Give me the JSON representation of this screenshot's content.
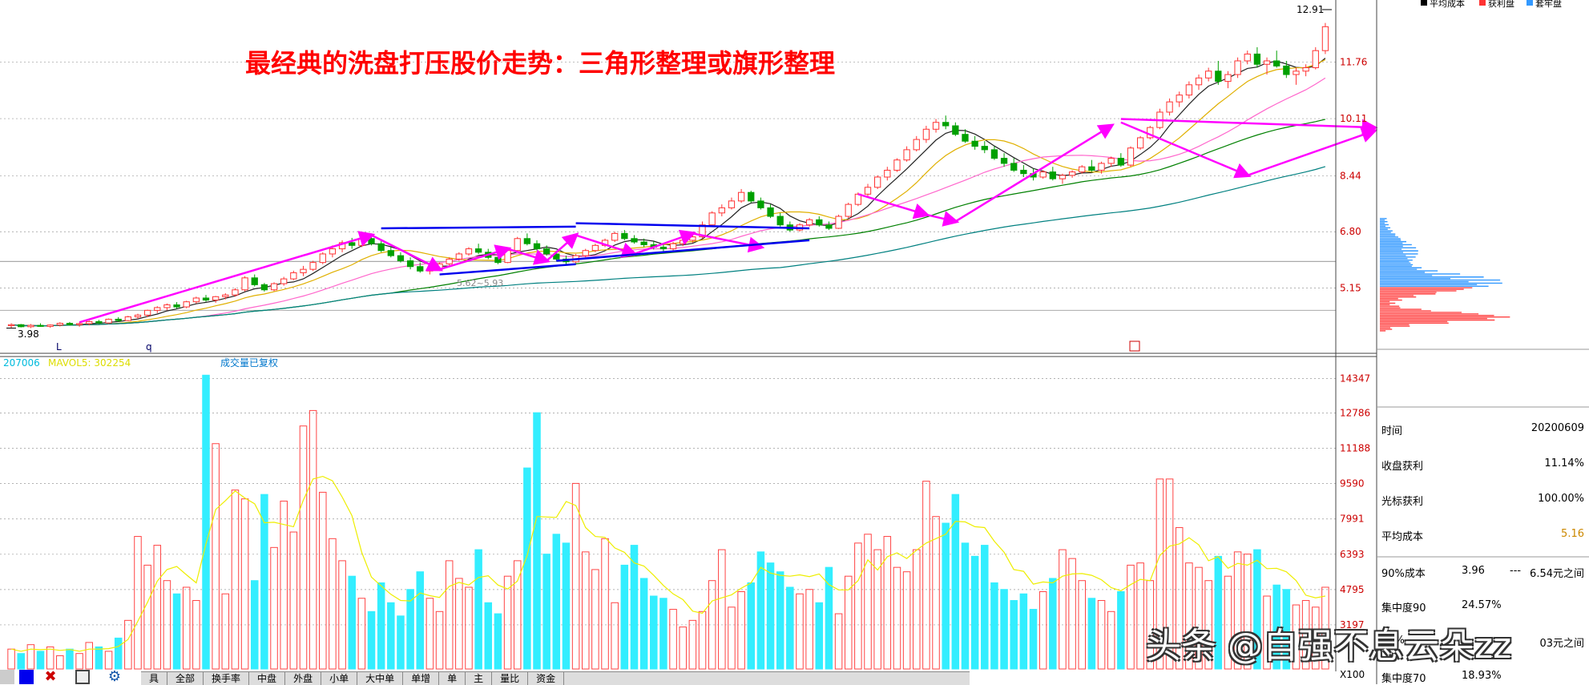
{
  "headline": "最经典的洗盘打压股价走势：三角形整理或旗形整理",
  "price_axis_labels": [
    "12.91",
    "11.76",
    "10.11",
    "8.44",
    "6.80",
    "5.15"
  ],
  "volume_axis_labels": [
    "14347",
    "12786",
    "11188",
    "9590",
    "7991",
    "6393",
    "4795",
    "3197"
  ],
  "volume_unit": "X100",
  "low_marker": "3.98",
  "support_label": "5.62~5.93",
  "time_markers": [
    "L",
    "q"
  ],
  "volume_header": {
    "vol": "207006",
    "mavol": "MAVOL5: 302254",
    "note": "成交量已复权"
  },
  "legend": [
    "平均成本",
    "获利盘",
    "套牢盘"
  ],
  "colors": {
    "up": "#ff3333",
    "down": "#00a000",
    "ma_white": "#222222",
    "ma_yellow": "#e0b000",
    "ma_pink": "#ff66cc",
    "ma_green": "#008000",
    "ma_teal": "#008080",
    "volume_up": "#ff4444",
    "volume_down": "#33eeff",
    "arrow": "#ff00ff",
    "trend": "#0000ee"
  },
  "side_panel": {
    "time_label": "时间",
    "time_value": "20200609",
    "close_profit_label": "收盘获利",
    "close_profit_value": "11.14%",
    "cursor_profit_label": "光标获利",
    "cursor_profit_value": "100.00%",
    "avg_cost_label": "平均成本",
    "avg_cost_value": "5.16",
    "cost90_label": "90%成本",
    "cost90_low": "3.96",
    "cost90_sep": "---",
    "cost90_high": "6.54元之间",
    "conc90_label": "集中度90",
    "conc90_value": "24.57%",
    "cost70_label": "70%",
    "cost70_tail": "03元之间",
    "conc70_label": "集中度70",
    "conc70_value": "18.93%"
  },
  "tabs": [
    "具",
    "全部",
    "换手率",
    "中盘",
    "外盘",
    "小单",
    "大中单",
    "单增",
    "单",
    "主",
    "量比",
    "资金"
  ],
  "watermark": "头条 @自强不息云朵zz",
  "chart_data": [
    {
      "type": "candlestick",
      "title": "",
      "y_axis_ticks": [
        12.91,
        11.76,
        10.11,
        8.44,
        6.8,
        5.15
      ],
      "ylim": [
        3.5,
        13.3
      ],
      "low_annotation": 3.98,
      "high_annotation": 12.91,
      "ohlc": [
        [
          4.05,
          4.12,
          3.98,
          4.08
        ],
        [
          4.08,
          4.1,
          4.0,
          4.02
        ],
        [
          4.02,
          4.1,
          3.98,
          4.06
        ],
        [
          4.06,
          4.12,
          4.02,
          4.03
        ],
        [
          4.03,
          4.09,
          3.99,
          4.07
        ],
        [
          4.07,
          4.15,
          4.03,
          4.12
        ],
        [
          4.12,
          4.16,
          4.05,
          4.08
        ],
        [
          4.08,
          4.14,
          4.02,
          4.11
        ],
        [
          4.11,
          4.2,
          4.06,
          4.17
        ],
        [
          4.17,
          4.22,
          4.1,
          4.13
        ],
        [
          4.13,
          4.26,
          4.1,
          4.24
        ],
        [
          4.24,
          4.3,
          4.16,
          4.2
        ],
        [
          4.2,
          4.34,
          4.18,
          4.31
        ],
        [
          4.31,
          4.4,
          4.25,
          4.36
        ],
        [
          4.36,
          4.52,
          4.3,
          4.5
        ],
        [
          4.5,
          4.62,
          4.42,
          4.58
        ],
        [
          4.58,
          4.7,
          4.5,
          4.66
        ],
        [
          4.66,
          4.74,
          4.55,
          4.6
        ],
        [
          4.6,
          4.78,
          4.56,
          4.75
        ],
        [
          4.75,
          4.9,
          4.7,
          4.86
        ],
        [
          4.86,
          4.95,
          4.75,
          4.8
        ],
        [
          4.8,
          4.92,
          4.72,
          4.9
        ],
        [
          4.9,
          5.0,
          4.82,
          4.95
        ],
        [
          4.95,
          5.15,
          4.9,
          5.1
        ],
        [
          5.1,
          5.5,
          5.05,
          5.45
        ],
        [
          5.45,
          5.55,
          5.2,
          5.25
        ],
        [
          5.25,
          5.3,
          5.05,
          5.1
        ],
        [
          5.1,
          5.32,
          5.06,
          5.28
        ],
        [
          5.28,
          5.48,
          5.22,
          5.42
        ],
        [
          5.42,
          5.66,
          5.38,
          5.6
        ],
        [
          5.6,
          5.8,
          5.5,
          5.7
        ],
        [
          5.7,
          5.95,
          5.65,
          5.9
        ],
        [
          5.9,
          6.2,
          5.85,
          6.15
        ],
        [
          6.15,
          6.4,
          6.05,
          6.3
        ],
        [
          6.3,
          6.55,
          6.2,
          6.48
        ],
        [
          6.48,
          6.62,
          6.3,
          6.4
        ],
        [
          6.4,
          6.66,
          6.35,
          6.6
        ],
        [
          6.6,
          6.75,
          6.4,
          6.45
        ],
        [
          6.45,
          6.55,
          6.2,
          6.25
        ],
        [
          6.25,
          6.35,
          6.05,
          6.1
        ],
        [
          6.1,
          6.2,
          5.9,
          5.95
        ],
        [
          5.95,
          6.05,
          5.7,
          5.78
        ],
        [
          5.78,
          5.9,
          5.6,
          5.65
        ],
        [
          5.65,
          5.75,
          5.55,
          5.7
        ],
        [
          5.7,
          5.9,
          5.65,
          5.86
        ],
        [
          5.86,
          6.05,
          5.8,
          6.0
        ],
        [
          6.0,
          6.2,
          5.95,
          6.15
        ],
        [
          6.15,
          6.35,
          6.1,
          6.3
        ],
        [
          6.3,
          6.45,
          6.15,
          6.2
        ],
        [
          6.2,
          6.3,
          6.0,
          6.05
        ],
        [
          6.05,
          6.15,
          5.85,
          5.9
        ],
        [
          5.9,
          6.3,
          5.88,
          6.25
        ],
        [
          6.25,
          6.65,
          6.2,
          6.6
        ],
        [
          6.6,
          6.75,
          6.4,
          6.45
        ],
        [
          6.45,
          6.55,
          6.25,
          6.3
        ],
        [
          6.3,
          6.4,
          6.1,
          6.15
        ],
        [
          6.15,
          6.25,
          5.95,
          6.0
        ],
        [
          6.0,
          6.1,
          5.85,
          5.92
        ],
        [
          5.92,
          6.15,
          5.88,
          6.1
        ],
        [
          6.1,
          6.3,
          6.05,
          6.25
        ],
        [
          6.25,
          6.45,
          6.2,
          6.4
        ],
        [
          6.4,
          6.6,
          6.35,
          6.55
        ],
        [
          6.55,
          6.8,
          6.5,
          6.75
        ],
        [
          6.75,
          6.85,
          6.55,
          6.6
        ],
        [
          6.6,
          6.7,
          6.45,
          6.5
        ],
        [
          6.5,
          6.6,
          6.35,
          6.42
        ],
        [
          6.42,
          6.52,
          6.28,
          6.35
        ],
        [
          6.35,
          6.45,
          6.2,
          6.3
        ],
        [
          6.3,
          6.5,
          6.25,
          6.45
        ],
        [
          6.45,
          6.6,
          6.38,
          6.55
        ],
        [
          6.55,
          6.7,
          6.48,
          6.65
        ],
        [
          6.65,
          7.1,
          6.6,
          7.0
        ],
        [
          7.0,
          7.4,
          6.95,
          7.35
        ],
        [
          7.35,
          7.6,
          7.25,
          7.5
        ],
        [
          7.5,
          7.8,
          7.45,
          7.7
        ],
        [
          7.7,
          8.05,
          7.65,
          7.95
        ],
        [
          7.95,
          8.0,
          7.65,
          7.7
        ],
        [
          7.7,
          7.8,
          7.45,
          7.5
        ],
        [
          7.5,
          7.6,
          7.2,
          7.25
        ],
        [
          7.25,
          7.35,
          6.95,
          7.0
        ],
        [
          7.0,
          7.1,
          6.8,
          6.85
        ],
        [
          6.85,
          7.05,
          6.8,
          7.0
        ],
        [
          7.0,
          7.2,
          6.95,
          7.15
        ],
        [
          7.15,
          7.25,
          6.95,
          7.0
        ],
        [
          7.0,
          7.1,
          6.85,
          6.9
        ],
        [
          6.9,
          7.3,
          6.88,
          7.25
        ],
        [
          7.25,
          7.65,
          7.2,
          7.6
        ],
        [
          7.6,
          7.95,
          7.55,
          7.9
        ],
        [
          7.9,
          8.2,
          7.8,
          8.1
        ],
        [
          8.1,
          8.45,
          8.05,
          8.4
        ],
        [
          8.4,
          8.7,
          8.3,
          8.6
        ],
        [
          8.6,
          8.95,
          8.55,
          8.9
        ],
        [
          8.9,
          9.3,
          8.85,
          9.2
        ],
        [
          9.2,
          9.6,
          9.15,
          9.5
        ],
        [
          9.5,
          9.9,
          9.4,
          9.8
        ],
        [
          9.8,
          10.1,
          9.7,
          10.0
        ],
        [
          10.0,
          10.2,
          9.8,
          9.9
        ],
        [
          9.9,
          10.0,
          9.6,
          9.65
        ],
        [
          9.65,
          9.8,
          9.4,
          9.45
        ],
        [
          9.45,
          9.6,
          9.2,
          9.3
        ],
        [
          9.3,
          9.45,
          9.1,
          9.2
        ],
        [
          9.2,
          9.3,
          8.9,
          8.95
        ],
        [
          8.95,
          9.1,
          8.7,
          8.8
        ],
        [
          8.8,
          8.95,
          8.55,
          8.6
        ],
        [
          8.6,
          8.75,
          8.4,
          8.5
        ],
        [
          8.5,
          8.65,
          8.3,
          8.4
        ],
        [
          8.4,
          8.6,
          8.35,
          8.55
        ],
        [
          8.55,
          8.7,
          8.3,
          8.35
        ],
        [
          8.35,
          8.5,
          8.2,
          8.45
        ],
        [
          8.45,
          8.6,
          8.38,
          8.55
        ],
        [
          8.55,
          8.75,
          8.5,
          8.7
        ],
        [
          8.7,
          8.9,
          8.55,
          8.6
        ],
        [
          8.6,
          8.85,
          8.5,
          8.8
        ],
        [
          8.8,
          9.0,
          8.7,
          8.95
        ],
        [
          8.95,
          9.1,
          8.7,
          8.75
        ],
        [
          8.75,
          9.3,
          8.7,
          9.25
        ],
        [
          9.25,
          9.6,
          9.2,
          9.55
        ],
        [
          9.55,
          9.9,
          9.5,
          9.85
        ],
        [
          9.85,
          10.4,
          9.8,
          10.3
        ],
        [
          10.3,
          10.7,
          10.2,
          10.6
        ],
        [
          10.6,
          10.9,
          10.45,
          10.8
        ],
        [
          10.8,
          11.2,
          10.7,
          11.1
        ],
        [
          11.1,
          11.4,
          10.95,
          11.3
        ],
        [
          11.3,
          11.6,
          11.2,
          11.5
        ],
        [
          11.5,
          11.8,
          11.1,
          11.2
        ],
        [
          11.2,
          11.5,
          11.0,
          11.4
        ],
        [
          11.4,
          11.9,
          11.3,
          11.8
        ],
        [
          11.8,
          12.1,
          11.7,
          12.0
        ],
        [
          12.0,
          12.2,
          11.6,
          11.7
        ],
        [
          11.7,
          11.9,
          11.4,
          11.8
        ],
        [
          11.8,
          12.1,
          11.6,
          11.65
        ],
        [
          11.65,
          11.8,
          11.3,
          11.4
        ],
        [
          11.4,
          11.6,
          11.1,
          11.5
        ],
        [
          11.5,
          11.7,
          11.35,
          11.6
        ],
        [
          11.6,
          12.2,
          11.55,
          12.1
        ],
        [
          12.1,
          12.91,
          12.0,
          12.8
        ]
      ]
    },
    {
      "type": "bar",
      "title": "",
      "y_axis_ticks": [
        14347,
        12786,
        11188,
        9590,
        7991,
        6393,
        4795,
        3197
      ],
      "ylim": [
        1200,
        14800
      ],
      "values": [
        2100,
        1900,
        2300,
        2000,
        2200,
        1800,
        2100,
        1900,
        2400,
        2200,
        2000,
        2600,
        3400,
        7200,
        5900,
        6800,
        5200,
        4600,
        4900,
        4300,
        14500,
        11400,
        4600,
        9300,
        8900,
        5200,
        9100,
        6700,
        8800,
        7400,
        12200,
        12900,
        9200,
        7100,
        6100,
        5400,
        4400,
        3800,
        5100,
        4200,
        3600,
        4800,
        5600,
        4400,
        3800,
        6100,
        5300,
        4900,
        6600,
        4200,
        3700,
        5400,
        6100,
        10300,
        12800,
        6400,
        7300,
        6900,
        9600,
        6500,
        5700,
        7100,
        4200,
        5900,
        6800,
        5300,
        4500,
        4400,
        3900,
        3100,
        3400,
        3800,
        5200,
        6600,
        4000,
        4700,
        5100,
        6500,
        6000,
        5600,
        4900,
        4600,
        4800,
        4200,
        5800,
        3700,
        5400,
        6900,
        7300,
        6600,
        7200,
        5800,
        5600,
        6600,
        9700,
        8100,
        7800,
        9100,
        6900,
        6300,
        6800,
        5100,
        4800,
        4300,
        4600,
        3900,
        4700,
        5300,
        6600,
        6200,
        5200,
        4400,
        4300,
        3800,
        4700,
        5900,
        6000,
        5200,
        9800,
        9800,
        7600,
        6000,
        5800,
        5200,
        6300,
        5400,
        6500,
        6400,
        6600,
        4500,
        5000,
        4800,
        4100,
        4300,
        4000,
        4900
      ],
      "mavol5": [
        2100,
        2000,
        2100,
        2075,
        2100,
        2040,
        2080,
        2000,
        2100,
        2100,
        2120,
        2220,
        2540,
        3360,
        4220,
        5180,
        5700,
        5840,
        5460,
        5100,
        6860,
        8420,
        8820,
        9260,
        8940,
        8680,
        7820,
        7840,
        7740,
        7640,
        8840,
        9800,
        9920,
        9720,
        8980,
        8140,
        6480,
        5360,
        4960,
        4580,
        4300,
        4280,
        4640,
        4520,
        4440,
        4940,
        5120,
        5000,
        5340,
        5420,
        5000,
        4820,
        5180,
        6340,
        8100,
        8080,
        8060,
        8780,
        8600,
        7600,
        7200,
        7160,
        6680,
        6480,
        6000,
        5860,
        5440,
        4980,
        4600,
        4340,
        3820,
        3720,
        4280,
        4420,
        4560,
        4860,
        5100,
        5800,
        5540,
        5440,
        5400,
        5460,
        5380,
        5500,
        5020,
        4780,
        4780,
        5200,
        6140,
        5680,
        6280,
        6460,
        6200,
        6580,
        6900,
        7100,
        7300,
        7880,
        7860,
        7640,
        7600,
        6980,
        6480,
        5700,
        5620,
        5040,
        5140,
        5100,
        5400,
        5500,
        5520,
        5440,
        5240,
        4880,
        4740,
        5020,
        5260,
        5200,
        6340,
        6760,
        6860,
        7140,
        6820,
        6100,
        6280,
        5760,
        5980,
        5900,
        6120,
        5740,
        5760,
        5600,
        5200,
        4540,
        4420,
        4500
      ],
      "unit": "X100"
    }
  ]
}
